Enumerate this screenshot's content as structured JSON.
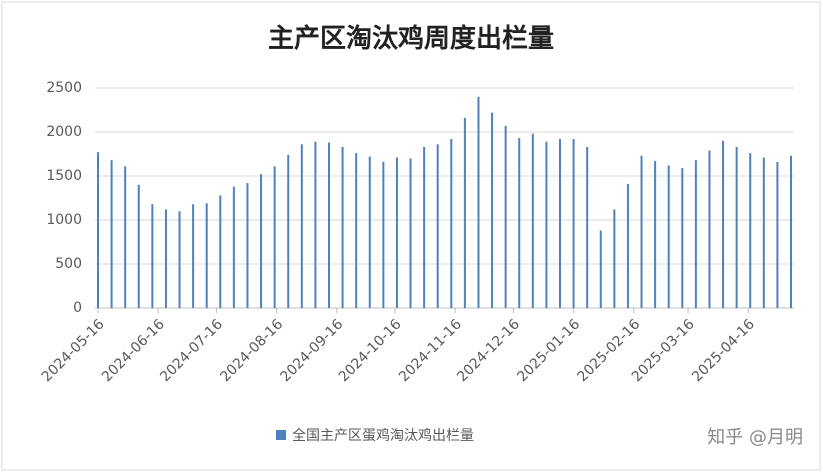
{
  "chart_data": {
    "type": "bar",
    "title": "主产区淘汰鸡周度出栏量",
    "x": [
      "2024-05-16",
      "2024-05-23",
      "2024-05-30",
      "2024-06-06",
      "2024-06-13",
      "2024-06-20",
      "2024-06-27",
      "2024-07-04",
      "2024-07-11",
      "2024-07-18",
      "2024-07-25",
      "2024-08-01",
      "2024-08-08",
      "2024-08-15",
      "2024-08-22",
      "2024-08-29",
      "2024-09-05",
      "2024-09-12",
      "2024-09-19",
      "2024-09-26",
      "2024-10-03",
      "2024-10-10",
      "2024-10-17",
      "2024-10-24",
      "2024-10-31",
      "2024-11-07",
      "2024-11-14",
      "2024-11-21",
      "2024-11-28",
      "2024-12-05",
      "2024-12-12",
      "2024-12-19",
      "2024-12-26",
      "2025-01-02",
      "2025-01-09",
      "2025-01-16",
      "2025-01-23",
      "2025-01-30",
      "2025-02-06",
      "2025-02-13",
      "2025-02-20",
      "2025-02-27",
      "2025-03-06",
      "2025-03-13",
      "2025-03-20",
      "2025-03-27",
      "2025-04-03",
      "2025-04-10",
      "2025-04-17",
      "2025-04-24",
      "2025-05-01",
      "2025-05-08"
    ],
    "series": [
      {
        "name": "全国主产区蛋鸡淘汰鸡出栏量",
        "color": "#4f81bd",
        "values": [
          1770,
          1680,
          1610,
          1400,
          1180,
          1120,
          1100,
          1180,
          1190,
          1280,
          1380,
          1420,
          1520,
          1610,
          1740,
          1860,
          1890,
          1880,
          1830,
          1760,
          1720,
          1660,
          1710,
          1700,
          1830,
          1860,
          1920,
          2160,
          2400,
          2220,
          2070,
          1930,
          1980,
          1890,
          1920,
          1920,
          1830,
          880,
          1120,
          1410,
          1730,
          1670,
          1620,
          1590,
          1680,
          1790,
          1900,
          1830,
          1760,
          1710,
          1660,
          1730
        ]
      }
    ],
    "xlim": [
      "2024-05-16",
      "2025-05-08"
    ],
    "xticks": [
      "2024-05-16",
      "2024-06-16",
      "2024-07-16",
      "2024-08-16",
      "2024-09-16",
      "2024-10-16",
      "2024-11-16",
      "2024-12-16",
      "2025-01-16",
      "2025-02-16",
      "2025-03-16",
      "2025-04-16"
    ],
    "ylim": [
      0,
      2500
    ],
    "yticks": [
      0,
      500,
      1000,
      1500,
      2000,
      2500
    ],
    "grid": true,
    "legend": "bottom",
    "watermark": "知乎 @月明"
  }
}
